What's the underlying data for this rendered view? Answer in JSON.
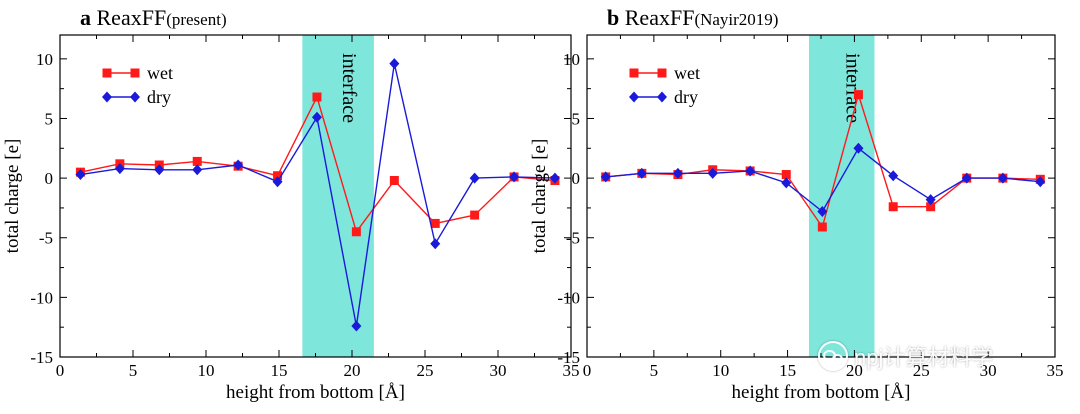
{
  "chart_data": [
    {
      "type": "line",
      "panel_letter": "a",
      "title": "ReaxFF",
      "title_suffix": "(present)",
      "xlabel": "height from bottom [Å]",
      "ylabel": "total charge [e]",
      "xlim": [
        0,
        35
      ],
      "ylim": [
        -15,
        12
      ],
      "xticks": [
        0,
        5,
        10,
        15,
        20,
        25,
        30,
        35
      ],
      "yticks": [
        -15,
        -10,
        -5,
        0,
        5,
        10
      ],
      "shaded_region": {
        "x": [
          16.6,
          21.5
        ],
        "label": "interface",
        "color": "#7fe6dc"
      },
      "legend_position": "top-left",
      "series": [
        {
          "name": "wet",
          "color": "#ff1a1a",
          "marker": "square",
          "x": [
            1.4,
            4.1,
            6.8,
            9.4,
            12.2,
            14.9,
            17.6,
            20.3,
            22.9,
            25.7,
            28.4,
            31.1,
            33.9
          ],
          "y": [
            0.5,
            1.2,
            1.1,
            1.4,
            1.0,
            0.2,
            6.8,
            -4.5,
            -0.2,
            -3.8,
            -3.1,
            0.1,
            -0.2
          ]
        },
        {
          "name": "dry",
          "color": "#1a1adb",
          "marker": "diamond",
          "x": [
            1.4,
            4.1,
            6.8,
            9.4,
            12.2,
            14.9,
            17.6,
            20.3,
            22.9,
            25.7,
            28.4,
            31.1,
            33.9
          ],
          "y": [
            0.3,
            0.8,
            0.7,
            0.7,
            1.1,
            -0.3,
            5.1,
            -12.4,
            9.6,
            -5.5,
            0.0,
            0.1,
            0.0
          ]
        }
      ]
    },
    {
      "type": "line",
      "panel_letter": "b",
      "title": "ReaxFF",
      "title_suffix": "(Nayir2019)",
      "xlabel": "height from bottom [Å]",
      "ylabel": "total charge [e]",
      "xlim": [
        0,
        35
      ],
      "ylim": [
        -15,
        12
      ],
      "xticks": [
        0,
        5,
        10,
        15,
        20,
        25,
        30,
        35
      ],
      "yticks": [
        -15,
        -10,
        -5,
        0,
        5,
        10
      ],
      "shaded_region": {
        "x": [
          16.6,
          21.5
        ],
        "label": "interface",
        "color": "#7fe6dc"
      },
      "legend_position": "top-left",
      "series": [
        {
          "name": "wet",
          "color": "#ff1a1a",
          "marker": "square",
          "x": [
            1.4,
            4.1,
            6.8,
            9.4,
            12.2,
            14.9,
            17.6,
            20.3,
            22.9,
            25.7,
            28.4,
            31.1,
            33.9
          ],
          "y": [
            0.1,
            0.4,
            0.3,
            0.7,
            0.6,
            0.3,
            -4.1,
            7.0,
            -2.4,
            -2.4,
            0.0,
            0.0,
            -0.1
          ]
        },
        {
          "name": "dry",
          "color": "#1a1adb",
          "marker": "diamond",
          "x": [
            1.4,
            4.1,
            6.8,
            9.4,
            12.2,
            14.9,
            17.6,
            20.3,
            22.9,
            25.7,
            28.4,
            31.1,
            33.9
          ],
          "y": [
            0.1,
            0.4,
            0.4,
            0.4,
            0.6,
            -0.4,
            -2.8,
            2.5,
            0.2,
            -1.8,
            0.0,
            0.0,
            -0.3
          ]
        }
      ]
    }
  ],
  "watermark": {
    "text": "npj计算材料学",
    "icon": "wechat-icon"
  }
}
